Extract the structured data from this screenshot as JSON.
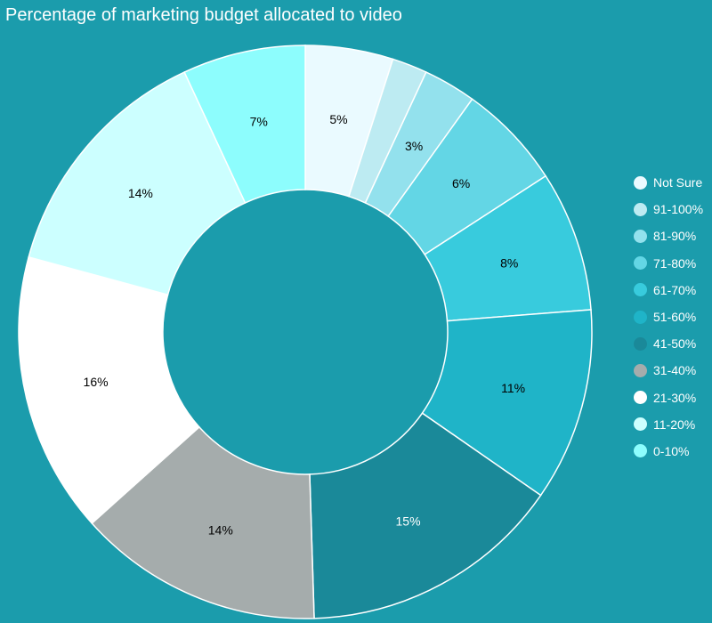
{
  "chart_data": {
    "type": "pie",
    "title": "Percentage of marketing budget allocated to video",
    "legend_position": "right",
    "series": [
      {
        "label": "Not Sure",
        "value": 5,
        "display": "5%",
        "color": "#eafaff",
        "text_color": "#000000"
      },
      {
        "label": "91-100%",
        "value": 2,
        "display": "",
        "color": "#bdebf2",
        "text_color": "#000000"
      },
      {
        "label": "81-90%",
        "value": 3,
        "display": "3%",
        "color": "#93e1ed",
        "text_color": "#000000"
      },
      {
        "label": "71-80%",
        "value": 6,
        "display": "6%",
        "color": "#63d6e5",
        "text_color": "#000000"
      },
      {
        "label": "61-70%",
        "value": 8,
        "display": "8%",
        "color": "#38cbdd",
        "text_color": "#000000"
      },
      {
        "label": "51-60%",
        "value": 11,
        "display": "11%",
        "color": "#1fb4c8",
        "text_color": "#000000"
      },
      {
        "label": "41-50%",
        "value": 15,
        "display": "15%",
        "color": "#1a8999",
        "text_color": "#ffffff"
      },
      {
        "label": "31-40%",
        "value": 14,
        "display": "14%",
        "color": "#a5acac",
        "text_color": "#000000"
      },
      {
        "label": "21-30%",
        "value": 16,
        "display": "16%",
        "color": "#ffffff",
        "text_color": "#000000"
      },
      {
        "label": "11-20%",
        "value": 14,
        "display": "14%",
        "color": "#ccffff",
        "text_color": "#000000"
      },
      {
        "label": "0-10%",
        "value": 7,
        "display": "7%",
        "color": "#8dfdfd",
        "text_color": "#000000"
      }
    ]
  }
}
